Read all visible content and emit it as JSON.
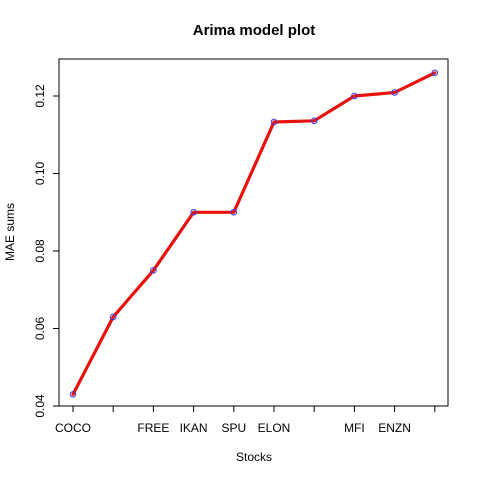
{
  "chart_data": {
    "type": "line",
    "title": "Arima model plot",
    "xlabel": "Stocks",
    "ylabel": "MAE sums",
    "categories": [
      "COCO",
      "",
      "FREE",
      "IKAN",
      "SPU",
      "ELON",
      "",
      "MFI",
      "ENZN",
      ""
    ],
    "values": [
      0.043,
      0.063,
      0.075,
      0.09,
      0.09,
      0.1133,
      0.1136,
      0.12,
      0.1209,
      0.126
    ],
    "ylim": [
      0.04,
      0.13
    ],
    "yticks": [
      "0.04",
      "0.06",
      "0.08",
      "0.10",
      "0.12"
    ],
    "grid": false,
    "legend": "none",
    "colors": {
      "line": "#e8120c",
      "point": "#3b3bd9",
      "axis": "#000000"
    }
  }
}
